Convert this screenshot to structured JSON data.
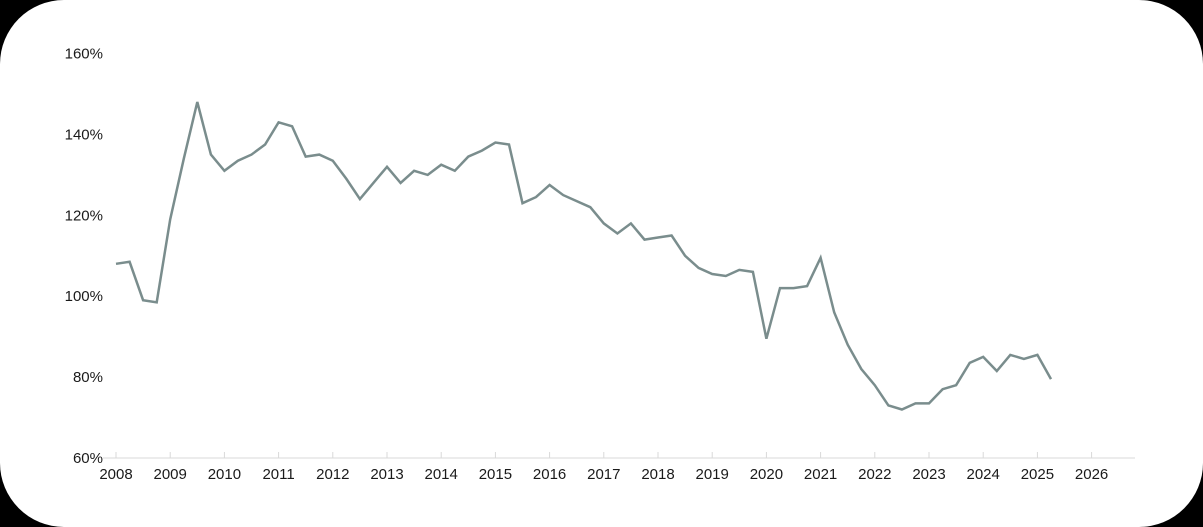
{
  "page": {
    "background_color": "#000000",
    "card_color": "#ffffff"
  },
  "chart_data": {
    "type": "line",
    "title": "",
    "xlabel": "",
    "ylabel": "",
    "x": [
      2008.0,
      2008.25,
      2008.5,
      2008.75,
      2009.0,
      2009.25,
      2009.5,
      2009.75,
      2010.0,
      2010.25,
      2010.5,
      2010.75,
      2011.0,
      2011.25,
      2011.5,
      2011.75,
      2012.0,
      2012.25,
      2012.5,
      2012.75,
      2013.0,
      2013.25,
      2013.5,
      2013.75,
      2014.0,
      2014.25,
      2014.5,
      2014.75,
      2015.0,
      2015.25,
      2015.5,
      2015.75,
      2016.0,
      2016.25,
      2016.5,
      2016.75,
      2017.0,
      2017.25,
      2017.5,
      2017.75,
      2018.0,
      2018.25,
      2018.5,
      2018.75,
      2019.0,
      2019.25,
      2019.5,
      2019.75,
      2020.0,
      2020.25,
      2020.5,
      2020.75,
      2021.0,
      2021.25,
      2021.5,
      2021.75,
      2022.0,
      2022.25,
      2022.5,
      2022.75,
      2023.0,
      2023.25,
      2023.5,
      2023.75,
      2024.0,
      2024.25,
      2024.5,
      2024.75,
      2025.0,
      2025.25
    ],
    "values": [
      108,
      108.5,
      99,
      98.5,
      119,
      134,
      148,
      135,
      131,
      133.5,
      135,
      137.5,
      143,
      142,
      134.5,
      135,
      133.5,
      129,
      124,
      128,
      132,
      128,
      131,
      130,
      132.5,
      131,
      134.5,
      136,
      138,
      137.5,
      123,
      124.5,
      127.5,
      125,
      123.5,
      122,
      118,
      115.5,
      118,
      114,
      114.5,
      115,
      110,
      107,
      105.5,
      105,
      106.5,
      106,
      89.5,
      102,
      102,
      102.5,
      109.5,
      96,
      88,
      82,
      78,
      73,
      72,
      73.5,
      73.5,
      77,
      78,
      83.5,
      85,
      81.5,
      85.5,
      84.5,
      85.5,
      79.5
    ],
    "x_tick_labels": [
      "2008",
      "2009",
      "2010",
      "2011",
      "2012",
      "2013",
      "2014",
      "2015",
      "2016",
      "2017",
      "2018",
      "2019",
      "2020",
      "2021",
      "2022",
      "2023",
      "2024",
      "2025",
      "2026"
    ],
    "x_tick_values": [
      2008,
      2009,
      2010,
      2011,
      2012,
      2013,
      2014,
      2015,
      2016,
      2017,
      2018,
      2019,
      2020,
      2021,
      2022,
      2023,
      2024,
      2025,
      2026
    ],
    "y_tick_labels": [
      "160%",
      "140%",
      "120%",
      "100%",
      "80%",
      "60%"
    ],
    "y_tick_values": [
      160,
      140,
      120,
      100,
      80,
      60
    ],
    "ylim": [
      60,
      160
    ],
    "xlim": [
      2007.76,
      2026.8
    ],
    "grid": false,
    "legend": "none",
    "line_color": "#7a8d8d",
    "axis_color": "#d9d9d9",
    "tick_label_color": "#1a1a1a"
  }
}
